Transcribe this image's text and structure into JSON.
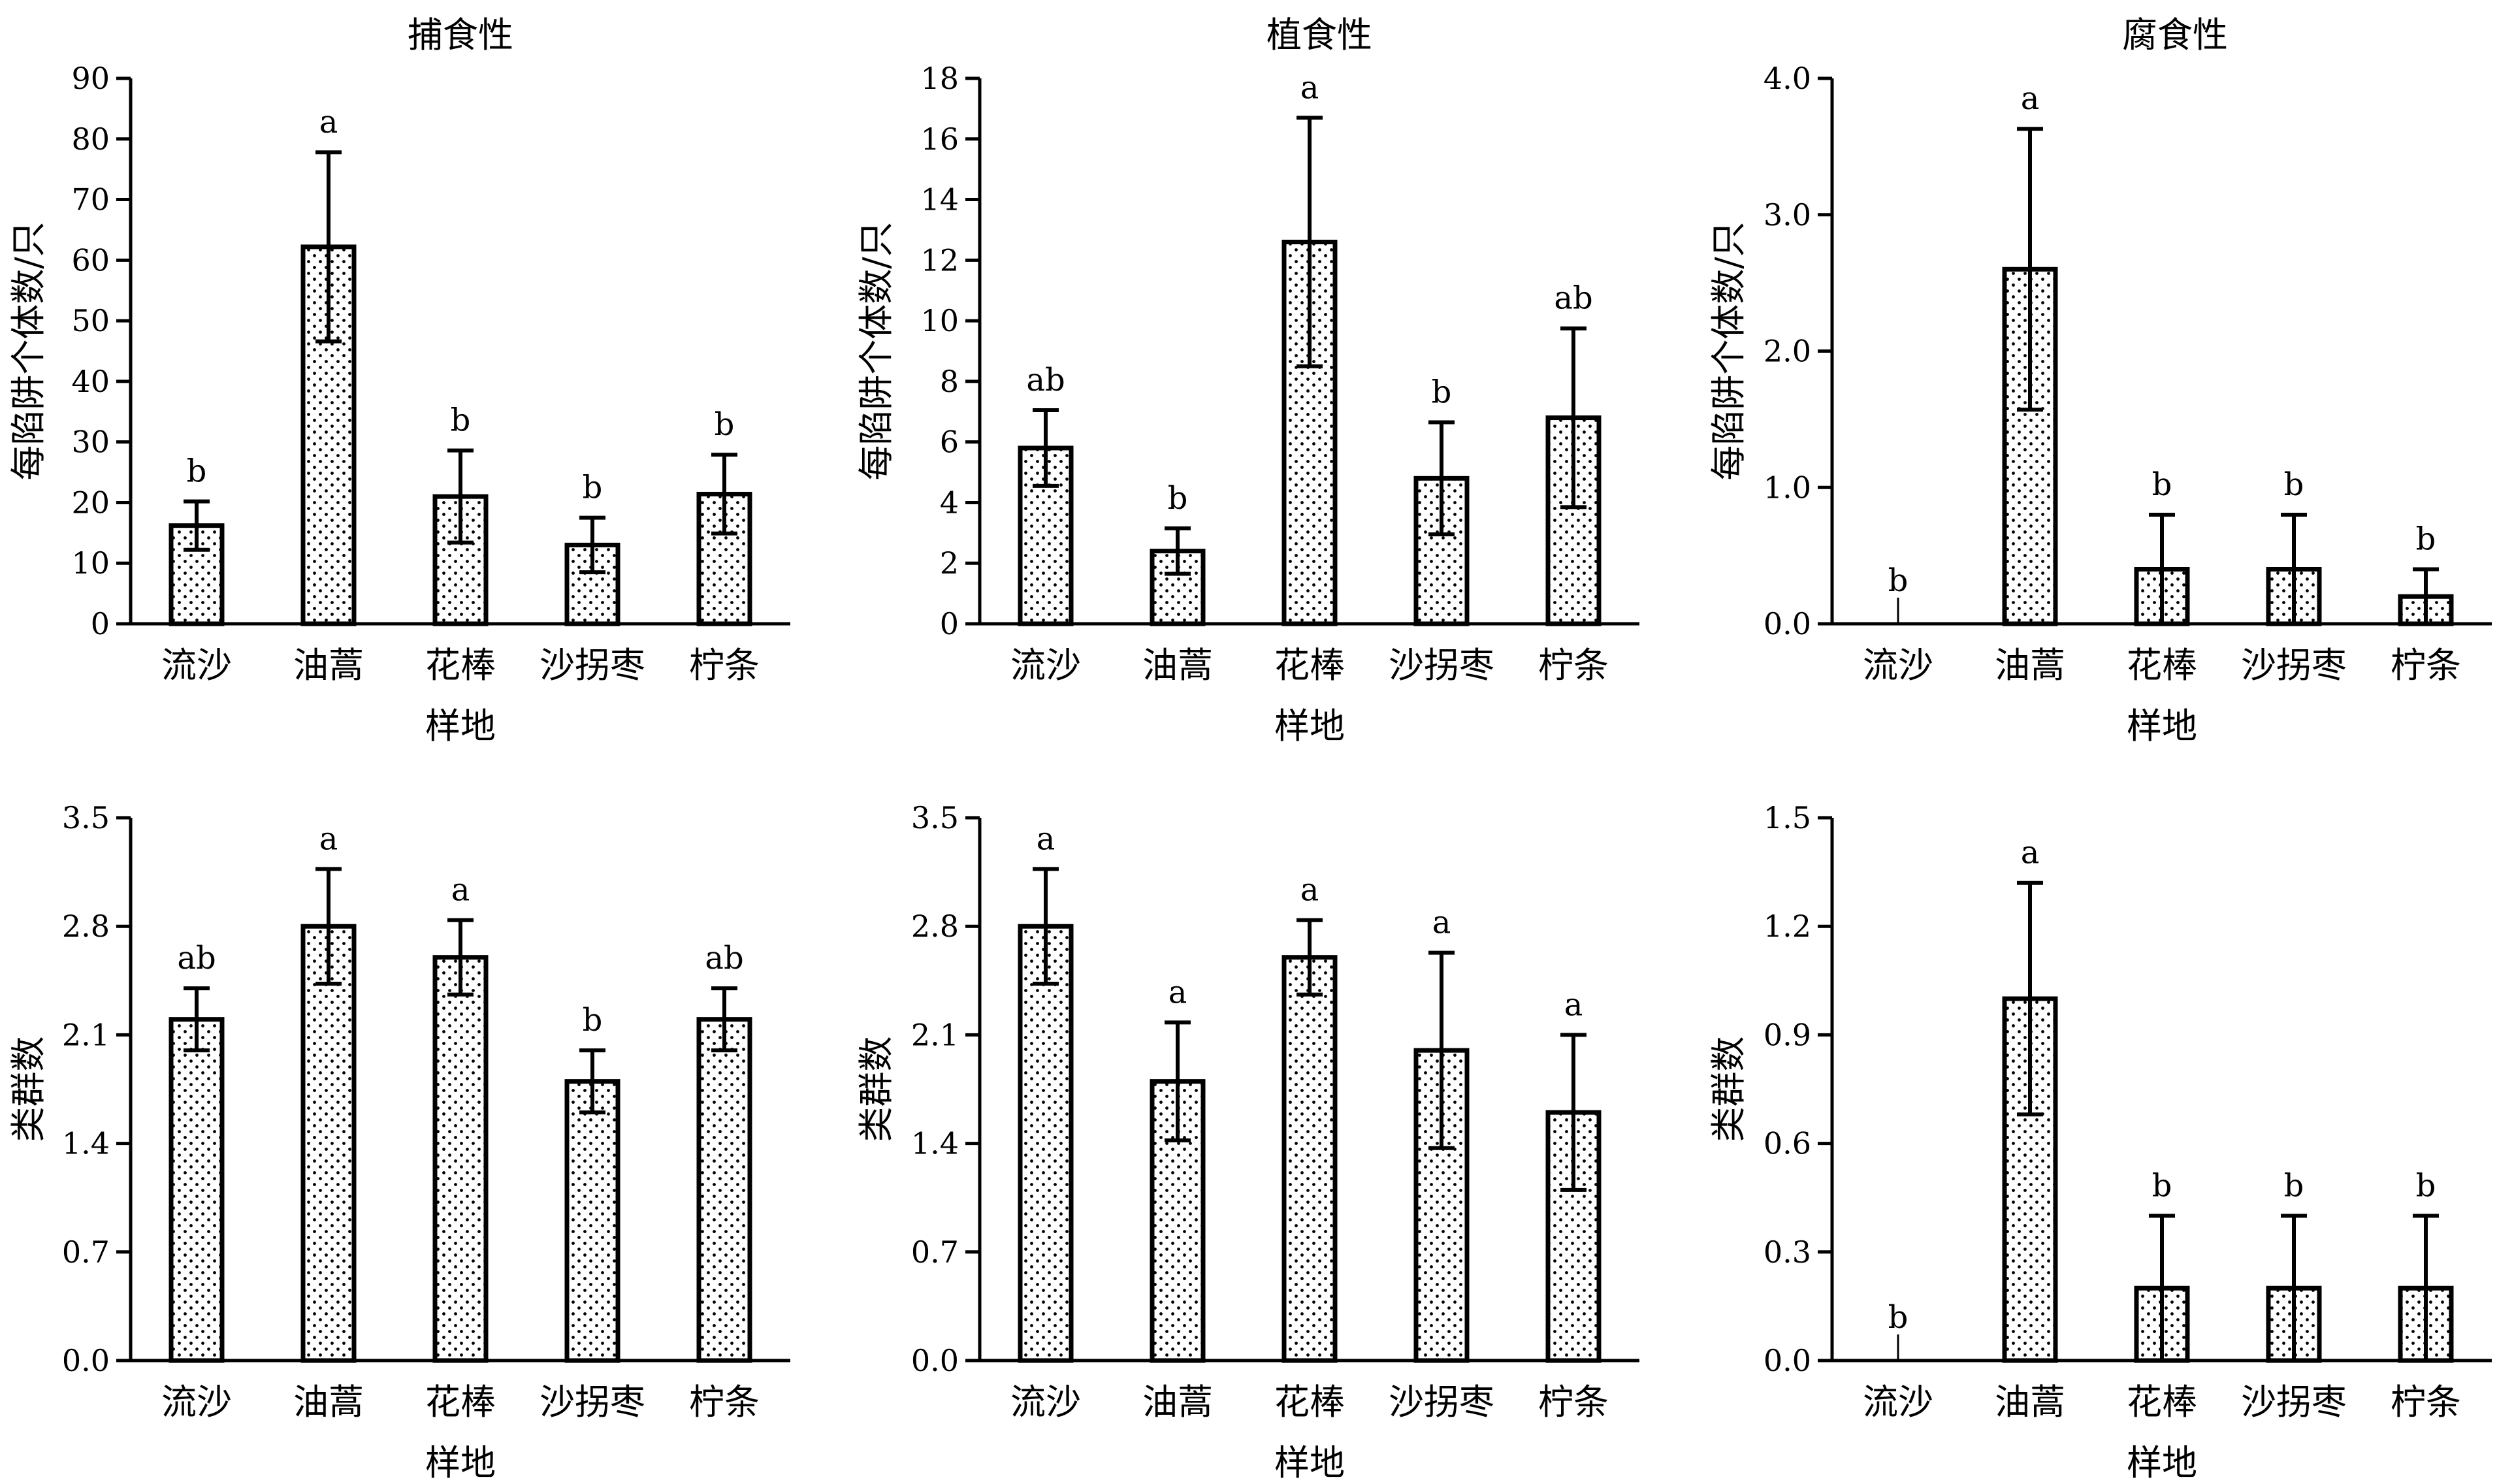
{
  "chart_data": [
    {
      "type": "bar",
      "title": "捕食性",
      "xlabel": "样地",
      "ylabel": "每陷阱个体数/只",
      "ylim": [
        0,
        90
      ],
      "yticks": [
        "0",
        "10",
        "20",
        "30",
        "40",
        "50",
        "60",
        "70",
        "80",
        "90"
      ],
      "categories": [
        "流沙",
        "油蒿",
        "花棒",
        "沙拐枣",
        "柠条"
      ],
      "values": [
        16.2,
        62.2,
        21.0,
        13.0,
        21.4
      ],
      "errors": [
        4.0,
        15.6,
        7.6,
        4.5,
        6.5
      ],
      "significance": [
        "b",
        "a",
        "b",
        "b",
        "b"
      ]
    },
    {
      "type": "bar",
      "title": "植食性",
      "xlabel": "样地",
      "ylabel": "每陷阱个体数/只",
      "ylim": [
        0,
        18
      ],
      "yticks": [
        "0",
        "2",
        "4",
        "6",
        "8",
        "10",
        "12",
        "14",
        "16",
        "18"
      ],
      "categories": [
        "流沙",
        "油蒿",
        "花棒",
        "沙拐枣",
        "柠条"
      ],
      "values": [
        5.8,
        2.4,
        12.6,
        4.8,
        6.8
      ],
      "errors": [
        1.25,
        0.75,
        4.1,
        1.85,
        2.95
      ],
      "significance": [
        "ab",
        "b",
        "a",
        "b",
        "ab"
      ]
    },
    {
      "type": "bar",
      "title": "腐食性",
      "xlabel": "样地",
      "ylabel": "每陷阱个体数/只",
      "ylim": [
        0,
        4.0
      ],
      "yticks": [
        "0.0",
        "1.0",
        "2.0",
        "3.0",
        "4.0"
      ],
      "categories": [
        "流沙",
        "油蒿",
        "花棒",
        "沙拐枣",
        "柠条"
      ],
      "values": [
        0,
        2.6,
        0.4,
        0.4,
        0.2
      ],
      "errors": [
        0,
        1.03,
        0.4,
        0.4,
        0.2
      ],
      "significance": [
        "b",
        "a",
        "b",
        "b",
        "b"
      ]
    },
    {
      "type": "bar",
      "title": "",
      "xlabel": "样地",
      "ylabel": "类群数",
      "ylim": [
        0,
        3.5
      ],
      "yticks": [
        "0.0",
        "0.7",
        "1.4",
        "2.1",
        "2.8",
        "3.5"
      ],
      "categories": [
        "流沙",
        "油蒿",
        "花棒",
        "沙拐枣",
        "柠条"
      ],
      "values": [
        2.2,
        2.8,
        2.6,
        1.8,
        2.2
      ],
      "errors": [
        0.2,
        0.37,
        0.24,
        0.2,
        0.2
      ],
      "significance": [
        "ab",
        "a",
        "a",
        "b",
        "ab"
      ]
    },
    {
      "type": "bar",
      "title": "",
      "xlabel": "样地",
      "ylabel": "类群数",
      "ylim": [
        0,
        3.5
      ],
      "yticks": [
        "0.0",
        "0.7",
        "1.4",
        "2.1",
        "2.8",
        "3.5"
      ],
      "categories": [
        "流沙",
        "油蒿",
        "花棒",
        "沙拐枣",
        "柠条"
      ],
      "values": [
        2.8,
        1.8,
        2.6,
        2.0,
        1.6
      ],
      "errors": [
        0.37,
        0.38,
        0.24,
        0.63,
        0.5
      ],
      "significance": [
        "a",
        "a",
        "a",
        "a",
        "a"
      ]
    },
    {
      "type": "bar",
      "title": "",
      "xlabel": "样地",
      "ylabel": "类群数",
      "ylim": [
        0,
        1.5
      ],
      "yticks": [
        "0.0",
        "0.3",
        "0.6",
        "0.9",
        "1.2",
        "1.5"
      ],
      "categories": [
        "流沙",
        "油蒿",
        "花棒",
        "沙拐枣",
        "柠条"
      ],
      "values": [
        0,
        1.0,
        0.2,
        0.2,
        0.2
      ],
      "errors": [
        0,
        0.32,
        0.2,
        0.2,
        0.2
      ],
      "significance": [
        "b",
        "a",
        "b",
        "b",
        "b"
      ]
    }
  ]
}
